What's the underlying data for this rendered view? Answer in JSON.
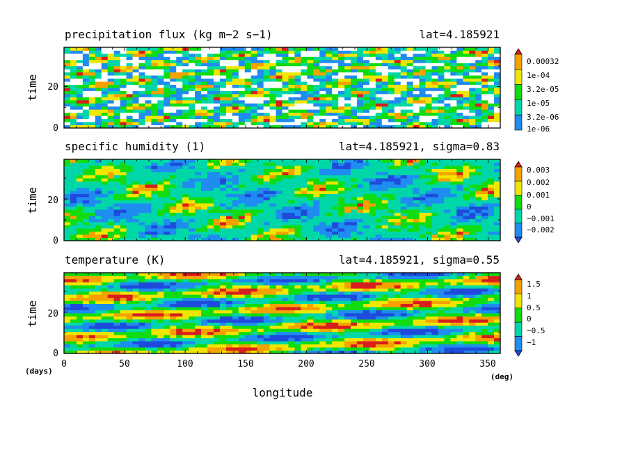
{
  "chart_data": [
    {
      "type": "heatmap",
      "id": "precip",
      "title": "precipitation flux (kg m−2 s−1)",
      "subtitle": "lat=4.185921",
      "ylabel": "time",
      "xlim": [
        0,
        360
      ],
      "ylim": [
        0,
        39
      ],
      "yticks": [
        "0",
        "20"
      ],
      "colorbar": {
        "labels": [
          "0.00032",
          "1e-04",
          "3.2e-05",
          "1e-05",
          "3.2e-06",
          "1e-06"
        ],
        "colors": [
          "#d81e1e",
          "#f5a200",
          "#f0e600",
          "#10dc10",
          "#00d7a8",
          "#1e8cf0"
        ]
      }
    },
    {
      "type": "heatmap",
      "id": "humidity",
      "title": "specific humidity (1)",
      "subtitle": "lat=4.185921, sigma=0.83",
      "ylabel": "time",
      "xlim": [
        0,
        360
      ],
      "ylim": [
        0,
        39
      ],
      "yticks": [
        "0",
        "20"
      ],
      "colorbar": {
        "labels": [
          "0.003",
          "0.002",
          "0.001",
          "0",
          "−0.001",
          "−0.002"
        ],
        "colors": [
          "#d81e1e",
          "#f5a200",
          "#f0e600",
          "#10dc10",
          "#00d7a8",
          "#1e8cf0",
          "#1e4bdc"
        ]
      }
    },
    {
      "type": "heatmap",
      "id": "temperature",
      "title": "temperature (K)",
      "subtitle": "lat=4.185921, sigma=0.55",
      "ylabel": "time",
      "xlim": [
        0,
        360
      ],
      "ylim": [
        0,
        39
      ],
      "yticks": [
        "0",
        "20"
      ],
      "colorbar": {
        "labels": [
          "1.5",
          "1",
          "0.5",
          "0",
          "−0.5",
          "−1"
        ],
        "colors": [
          "#d81e1e",
          "#f5a200",
          "#f0e600",
          "#10dc10",
          "#00d7a8",
          "#1e8cf0",
          "#1e4bdc"
        ]
      }
    }
  ],
  "x_axis": {
    "label": "longitude",
    "ticks": [
      "0",
      "50",
      "100",
      "150",
      "200",
      "250",
      "300",
      "350"
    ],
    "unit": "(deg)"
  },
  "y_unit": "(days)"
}
